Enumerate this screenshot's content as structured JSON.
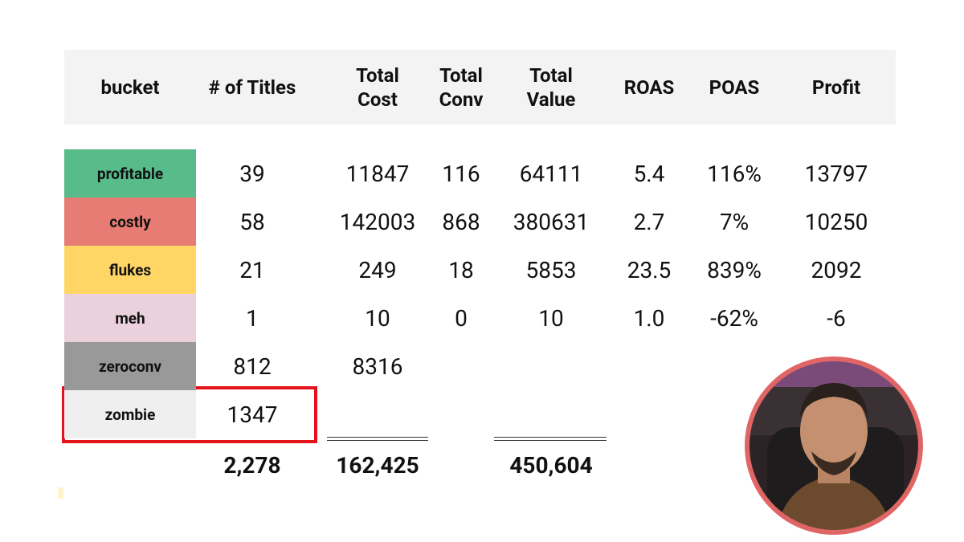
{
  "table": {
    "header": [
      "bucket",
      "# of Titles",
      "Total Cost",
      "Total Conv",
      "Total Value",
      "ROAS",
      "POAS",
      "Profit"
    ],
    "rows": [
      [
        "profitable",
        "39",
        "11847",
        "116",
        "64111",
        "5.4",
        "116%",
        "13797"
      ],
      [
        "costly",
        "58",
        "142003",
        "868",
        "380631",
        "2.7",
        "7%",
        "10250"
      ],
      [
        "flukes",
        "21",
        "249",
        "18",
        "5853",
        "23.5",
        "839%",
        "2092"
      ],
      [
        "meh",
        "1",
        "10",
        "0",
        "10",
        "1.0",
        "-62%",
        "-6"
      ],
      [
        "zeroconv",
        "812",
        "8316"
      ],
      [
        "zombie",
        "1347"
      ]
    ],
    "bucket_colors": [
      "#57bb8a",
      "#e67c73",
      "#ffd666",
      "#ead1dc",
      "#999999",
      "#efefef"
    ],
    "totals": {
      "titles": "2,278",
      "cost": "162,425",
      "value": "450,604"
    }
  }
}
